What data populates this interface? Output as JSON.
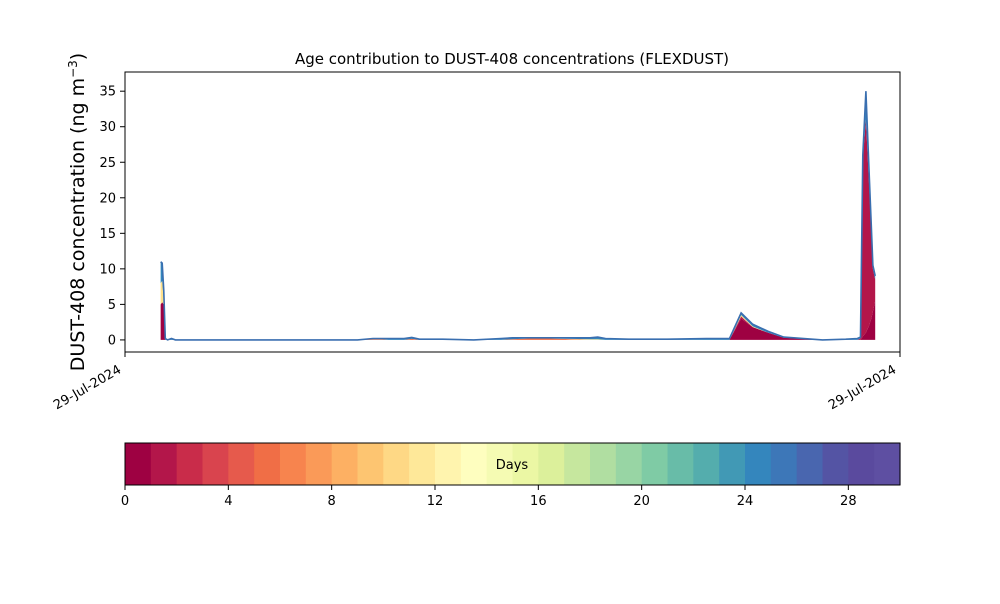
{
  "chart_data": {
    "type": "area",
    "title": "Age contribution to DUST-408 concentrations (FLEXDUST)",
    "ylabel": "DUST-408 concentration (ng m",
    "ylabel_sup": "−3",
    "ylabel_close": ")",
    "xlabel": "",
    "x_tick_labels": [
      "29-Jul-2024",
      "29-Jul-2024"
    ],
    "y_ticks": [
      0,
      5,
      10,
      15,
      20,
      25,
      30,
      35
    ],
    "ylim": [
      -1.7,
      37.7
    ],
    "xlim": [
      0,
      100
    ],
    "grid": false,
    "x": [
      4.6,
      4.8,
      5.0,
      5.2,
      5.5,
      6.0,
      6.5,
      7.0,
      8.0,
      10,
      15,
      20,
      25,
      30,
      32,
      33,
      34,
      36,
      37,
      38,
      39.5,
      41,
      45,
      48.5,
      50,
      52,
      55,
      60,
      61,
      62,
      65,
      70,
      75,
      76,
      78,
      79.5,
      81,
      83,
      85,
      90,
      93,
      94.5,
      94.9,
      95.2,
      95.6,
      96,
      96.3,
      96.5,
      96.8
    ],
    "series": [
      {
        "name": "",
        "color": "#9e0142",
        "values": [
          5.0,
          5.3,
          5.0,
          0,
          0,
          0,
          0,
          0,
          0,
          0,
          0,
          0,
          0,
          0,
          0,
          0,
          0,
          0,
          0,
          0,
          0,
          0,
          0,
          0,
          0,
          0,
          0,
          0,
          0,
          0,
          0,
          0,
          0,
          0,
          0,
          3.0,
          1.8,
          1.0,
          0.3,
          0,
          0,
          0,
          0,
          0.5,
          1.0,
          2.0,
          3.0,
          4.0,
          5.5
        ]
      },
      {
        "name": "",
        "color": "#b3164a",
        "values": [
          0,
          0,
          0,
          0,
          0,
          0,
          0,
          0,
          0,
          0,
          0,
          0,
          0,
          0,
          0,
          0,
          0,
          0,
          0,
          0,
          0,
          0,
          0,
          0,
          0,
          0,
          0,
          0,
          0,
          0,
          0,
          0,
          0,
          0,
          0,
          0.3,
          0,
          0,
          0,
          0,
          0,
          0,
          0.2,
          25.0,
          30.0,
          20.0,
          12.0,
          6.0,
          3.0
        ]
      },
      {
        "name": "",
        "color": "#f46d43",
        "values": [
          0,
          0,
          0,
          0,
          0,
          0,
          0,
          0,
          0,
          0,
          0,
          0,
          0,
          0,
          0.1,
          0.1,
          0,
          0,
          0.15,
          0,
          0,
          0,
          0,
          0,
          0.1,
          0.2,
          0.2,
          0,
          0,
          0,
          0,
          0,
          0,
          0,
          0,
          0,
          0,
          0,
          0,
          0,
          0,
          0,
          0,
          0,
          0,
          0,
          0,
          0,
          0
        ]
      },
      {
        "name": "",
        "color": "#fee08b",
        "values": [
          3.0,
          3.0,
          0.5,
          0,
          0,
          0,
          0,
          0,
          0,
          0,
          0,
          0,
          0,
          0,
          0,
          0,
          0,
          0,
          0,
          0,
          0,
          0,
          0,
          0,
          0,
          0,
          0,
          0.1,
          0.1,
          0,
          0,
          0,
          0,
          0,
          0,
          0.2,
          0.1,
          0,
          0,
          0,
          0,
          0,
          0,
          0,
          0,
          0,
          0,
          0,
          0
        ]
      },
      {
        "name": "",
        "color": "#3288bd",
        "values": [
          3.0,
          2.5,
          1.5,
          0.2,
          0,
          0.2,
          0,
          0,
          0,
          0,
          0,
          0,
          0,
          0,
          0.1,
          0.1,
          0.2,
          0.2,
          0.2,
          0.1,
          0.1,
          0.1,
          0,
          0.2,
          0.2,
          0.1,
          0.1,
          0.2,
          0.3,
          0.2,
          0.1,
          0.1,
          0.2,
          0.2,
          0.2,
          0.3,
          0.3,
          0.2,
          0.1,
          0,
          0.1,
          0.2,
          0.2,
          0.5,
          4.0,
          2.0,
          1.0,
          0.5,
          0.5
        ]
      }
    ],
    "colorbar": {
      "label": "Days",
      "range": [
        0,
        30
      ],
      "ticks": [
        0,
        4,
        8,
        12,
        16,
        20,
        24,
        28
      ],
      "n_bins": 30,
      "colors": [
        "#9e0142",
        "#b3164a",
        "#c92c4a",
        "#d9444e",
        "#e65a4c",
        "#f06e46",
        "#f7844e",
        "#fa9a58",
        "#fdb063",
        "#fdc571",
        "#fed885",
        "#fee899",
        "#fff4ae",
        "#fefebf",
        "#f5fbb3",
        "#ebf7a4",
        "#dcf09b",
        "#c6e79e",
        "#b0dea1",
        "#98d5a4",
        "#7fcba5",
        "#68bca8",
        "#54adad",
        "#4199b5",
        "#3486bd",
        "#3d77b8",
        "#4966af",
        "#5454a4",
        "#5a4a9e",
        "#5e4fa2"
      ]
    }
  }
}
